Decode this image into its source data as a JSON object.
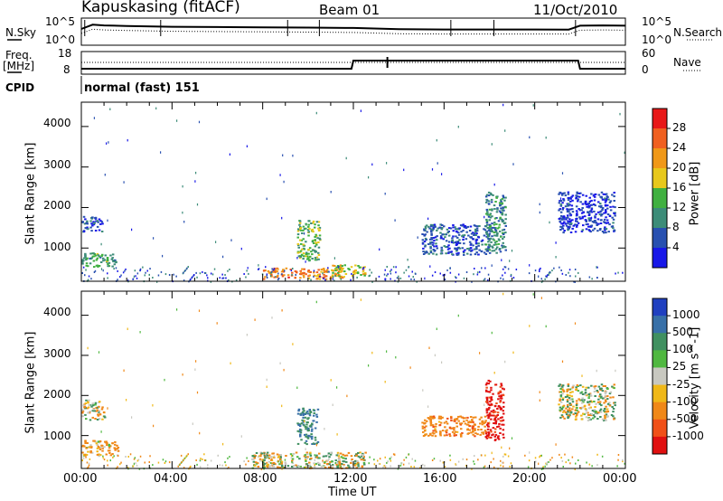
{
  "header": {
    "station": "Kapuskasing (fitACF)",
    "beam": "Beam 01",
    "date": "11/Oct/2010"
  },
  "left_labels": {
    "nsky": "N.Sky",
    "freq": "Freq.",
    "mhz": "[MHz]",
    "cpid": "CPID"
  },
  "right_labels": {
    "nsearch": "N.Search",
    "nave": "Nave"
  },
  "noise_ticks": {
    "left_top": "10^5",
    "left_bottom": "10^0",
    "right_top": "10^5",
    "right_bottom": "10^0"
  },
  "freq_ticks": {
    "left_top": "18",
    "left_bottom": "8",
    "right_top": "60",
    "right_bottom": "0"
  },
  "cpid_text": "normal (fast) 151",
  "x_axis": {
    "label": "Time UT",
    "ticks": [
      "00:00",
      "04:00",
      "08:00",
      "12:00",
      "16:00",
      "20:00",
      "00:00"
    ]
  },
  "y_axis": {
    "label": "Slant Range [km]",
    "ticks": [
      "1000",
      "2000",
      "3000",
      "4000"
    ]
  },
  "power_colorbar": {
    "label": "Power [dB]",
    "ticks": [
      "4",
      "8",
      "12",
      "16",
      "20",
      "24",
      "28"
    ],
    "colors": [
      "#1818e8",
      "#2850b0",
      "#3c8c78",
      "#40b040",
      "#e8c81c",
      "#f09818",
      "#f06020",
      "#e81818"
    ]
  },
  "velocity_colorbar": {
    "label": "Velocity [m s^-1]",
    "ticks": [
      "1000",
      "500",
      "100",
      "25",
      "-25",
      "-100",
      "-500",
      "-1000"
    ],
    "colors": [
      "#2040c0",
      "#3870a8",
      "#409060",
      "#50b840",
      "#c8c8c0",
      "#f0b818",
      "#f08818",
      "#f05018",
      "#e01010"
    ]
  },
  "chart_data": [
    {
      "type": "line",
      "title": "",
      "xlabel": "",
      "ylabel": "N.Sky",
      "x": [
        "00:00",
        "00:30",
        "01:00",
        "02:00",
        "04:00",
        "06:00",
        "08:00",
        "10:00",
        "12:00",
        "14:00",
        "16:00",
        "18:00",
        "20:00",
        "21:30",
        "22:00",
        "23:00",
        "24:00"
      ],
      "series": [
        {
          "name": "N.Sky",
          "values": [
            1000,
            6000,
            4500,
            3500,
            2500,
            2200,
            2000,
            1800,
            1500,
            900,
            800,
            800,
            800,
            750,
            4000,
            4500,
            4000
          ]
        }
      ]
    },
    {
      "type": "line",
      "title": "",
      "xlabel": "",
      "ylabel": "Freq. [MHz]",
      "x": [
        "00:00",
        "11:55",
        "12:00",
        "13:30",
        "13:35",
        "21:55",
        "22:00",
        "24:00"
      ],
      "series": [
        {
          "name": "Freq.",
          "values": [
            10.4,
            10.4,
            14.0,
            14.0,
            14.0,
            14.0,
            10.4,
            10.4
          ]
        }
      ]
    },
    {
      "type": "heatmap",
      "title": "",
      "xlabel": "Time UT",
      "ylabel": "Slant Range [km]",
      "xlim": [
        0,
        24
      ],
      "ylim": [
        180,
        4600
      ],
      "legend": "Power [dB]",
      "regions": [
        {
          "t": [
            0.0,
            0.9
          ],
          "r": [
            1400,
            1800
          ],
          "power_db": 8
        },
        {
          "t": [
            0.0,
            1.5
          ],
          "r": [
            550,
            900
          ],
          "power_db": 14
        },
        {
          "t": [
            8.0,
            11.5
          ],
          "r": [
            250,
            520
          ],
          "power_db": 26
        },
        {
          "t": [
            9.5,
            10.5
          ],
          "r": [
            700,
            1700
          ],
          "power_db": 16
        },
        {
          "t": [
            11.0,
            12.5
          ],
          "r": [
            300,
            600
          ],
          "power_db": 20
        },
        {
          "t": [
            15.0,
            18.0
          ],
          "r": [
            850,
            1600
          ],
          "power_db": 8
        },
        {
          "t": [
            17.8,
            18.7
          ],
          "r": [
            900,
            2400
          ],
          "power_db": 12
        },
        {
          "t": [
            21.0,
            23.5
          ],
          "r": [
            1400,
            2400
          ],
          "power_db": 6
        }
      ]
    },
    {
      "type": "heatmap",
      "title": "",
      "xlabel": "Time UT",
      "ylabel": "Slant Range [km]",
      "xlim": [
        0,
        24
      ],
      "ylim": [
        180,
        4600
      ],
      "legend": "Velocity [m s^-1]",
      "regions": [
        {
          "t": [
            0.0,
            1.6
          ],
          "r": [
            500,
            900
          ],
          "velocity": -100
        },
        {
          "t": [
            0.0,
            1.0
          ],
          "r": [
            1400,
            1900
          ],
          "velocity": 0
        },
        {
          "t": [
            7.5,
            12.5
          ],
          "r": [
            200,
            600
          ],
          "velocity": 0
        },
        {
          "t": [
            9.5,
            10.4
          ],
          "r": [
            800,
            1700
          ],
          "velocity": 300
        },
        {
          "t": [
            15.0,
            17.8
          ],
          "r": [
            1000,
            1500
          ],
          "velocity": -200
        },
        {
          "t": [
            17.8,
            18.6
          ],
          "r": [
            900,
            2400
          ],
          "velocity": -800
        },
        {
          "t": [
            21.0,
            23.5
          ],
          "r": [
            1400,
            2300
          ],
          "velocity": 0
        }
      ]
    }
  ]
}
